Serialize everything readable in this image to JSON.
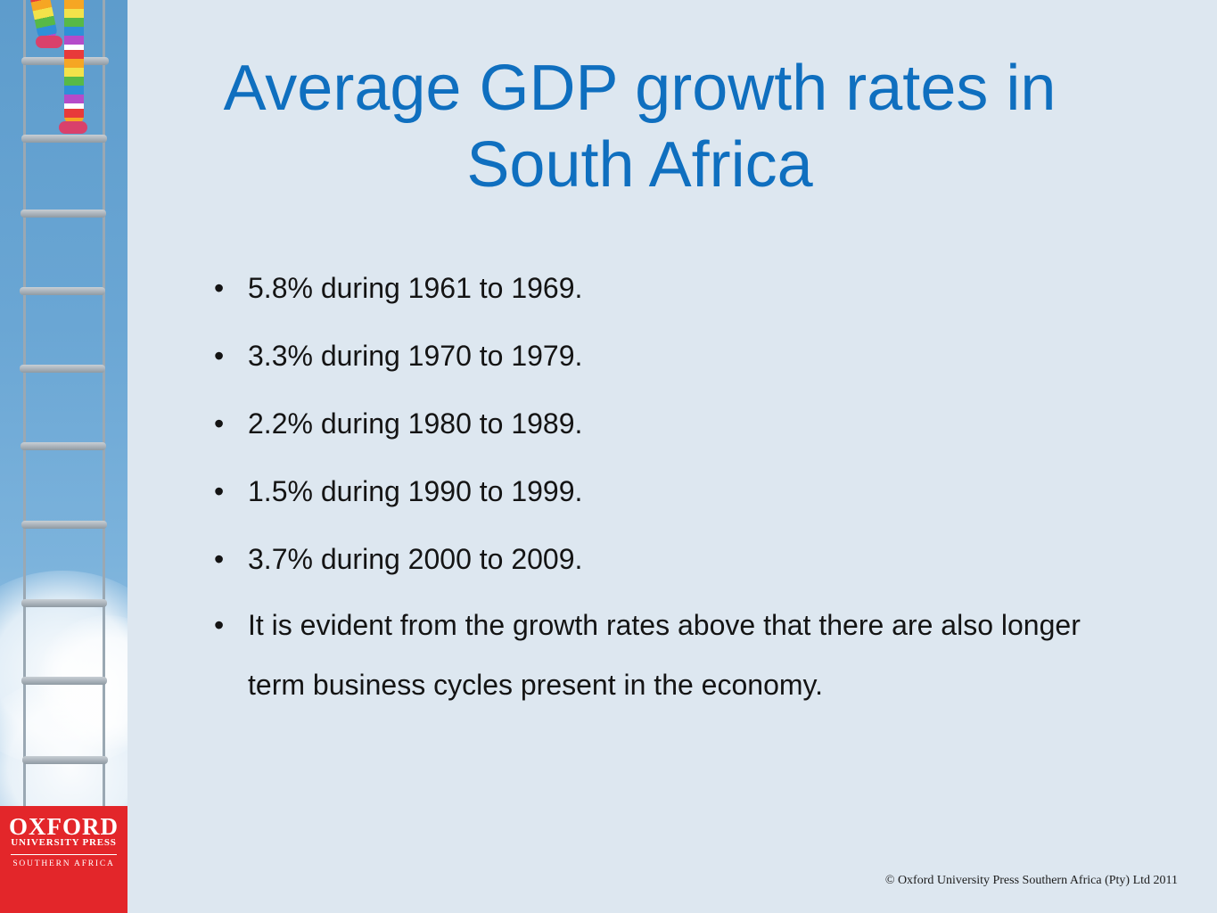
{
  "slide": {
    "title": "Average GDP growth rates in South Africa",
    "bullet_glyph": "•",
    "bullets": [
      "5.8% during 1961 to 1969.",
      "3.3% during 1970 to 1979.",
      "2.2% during 1980 to 1989.",
      "1.5% during 1990 to 1999.",
      "3.7% during 2000 to 2009.",
      "It is evident from the growth rates above that there are also longer term business cycles present in the economy."
    ]
  },
  "logo": {
    "wordmark": "OXFORD",
    "subline": "UNIVERSITY PRESS",
    "region": "SOUTHERN AFRICA",
    "background_color": "#e3262a"
  },
  "footer": {
    "copyright": "© Oxford University Press Southern Africa (Pty) Ltd 2011"
  },
  "colors": {
    "title": "#0f6fbf",
    "background": "#dde7f0",
    "body_text": "#141414"
  }
}
